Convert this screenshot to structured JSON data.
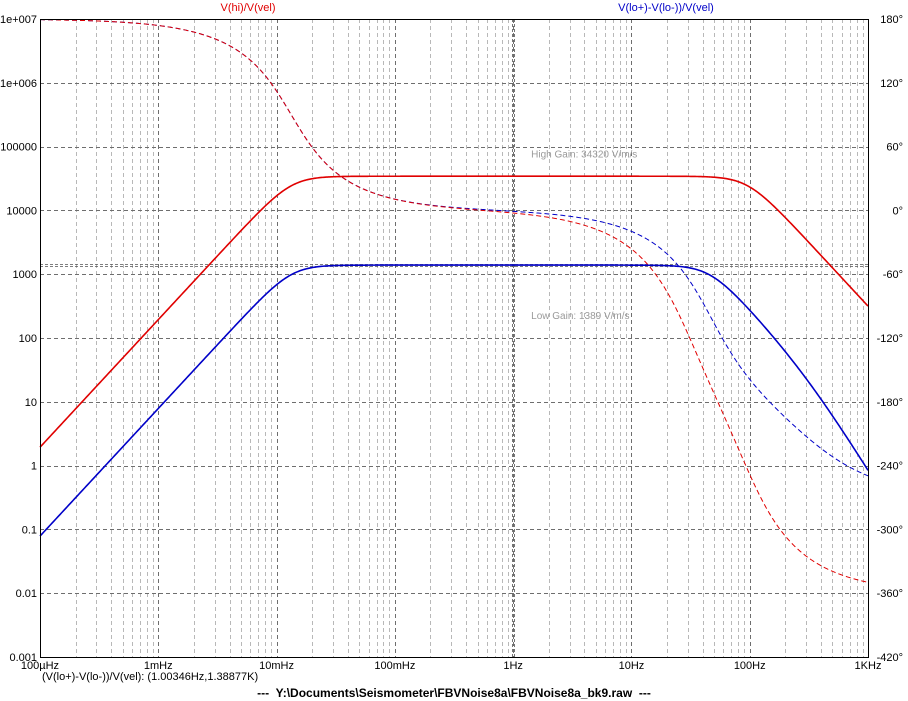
{
  "chart_data": {
    "type": "line",
    "x_axis": {
      "scale": "log",
      "range": [
        0.0001,
        1000
      ],
      "tick_labels": [
        {
          "value": 0.0001,
          "label": "100µHz"
        },
        {
          "value": 0.001,
          "label": "1mHz"
        },
        {
          "value": 0.01,
          "label": "10mHz"
        },
        {
          "value": 0.1,
          "label": "100mHz"
        },
        {
          "value": 1,
          "label": "1Hz"
        },
        {
          "value": 10,
          "label": "10Hz"
        },
        {
          "value": 100,
          "label": "100Hz"
        },
        {
          "value": 1000,
          "label": "1KHz"
        }
      ]
    },
    "y_left": {
      "scale": "log",
      "range": [
        0.001,
        10000000
      ],
      "tick_labels": [
        {
          "value": 10000000,
          "label": "1e+007"
        },
        {
          "value": 1000000,
          "label": "1e+006"
        },
        {
          "value": 100000,
          "label": "100000"
        },
        {
          "value": 10000,
          "label": "10000"
        },
        {
          "value": 1000,
          "label": "1000"
        },
        {
          "value": 100,
          "label": "100"
        },
        {
          "value": 10,
          "label": "10"
        },
        {
          "value": 1,
          "label": "1"
        },
        {
          "value": 0.1,
          "label": "0.1"
        },
        {
          "value": 0.01,
          "label": "0.01"
        },
        {
          "value": 0.001,
          "label": "0.001"
        }
      ]
    },
    "y_right": {
      "scale": "linear",
      "unit": "degrees",
      "range": [
        -420,
        180
      ],
      "tick_labels": [
        {
          "value": 180,
          "label": "180°"
        },
        {
          "value": 120,
          "label": "120°"
        },
        {
          "value": 60,
          "label": "60°"
        },
        {
          "value": 0,
          "label": "0°"
        },
        {
          "value": -60,
          "label": "-60°"
        },
        {
          "value": -120,
          "label": "-120°"
        },
        {
          "value": -180,
          "label": "-180°"
        },
        {
          "value": -240,
          "label": "-240°"
        },
        {
          "value": -300,
          "label": "-300°"
        },
        {
          "value": -360,
          "label": "-360°"
        },
        {
          "value": -420,
          "label": "-420°"
        }
      ]
    },
    "grid": true,
    "series": [
      {
        "name": "V(hi)/V(vel)",
        "color": "#e00000"
      },
      {
        "name": "V(lo+)-V(lo-))/V(vel)",
        "color": "#0000c8"
      }
    ],
    "model": {
      "low_corner_hz": 0.0133,
      "high_gain": 34320,
      "low_gain": 1389,
      "red_high_corner_hz": 96,
      "blue_high_corner_hz": 46
    },
    "annotations": [
      {
        "text": "High Gain: 34320 V/m/s",
        "x": 1,
        "y": 67000
      },
      {
        "text": "Low Gain: 1389 V/m/s",
        "x": 1,
        "y": 200
      }
    ],
    "cursor": {
      "x": 1.00346,
      "y": 1389
    }
  },
  "status_text": "(V(lo+)-V(lo-))/V(vel): (1.00346Hz,1.38877K)",
  "footer_text": "---  Y:\\Documents\\Seismometer\\FBVNoise8a\\FBVNoise8a_bk9.raw  ---"
}
